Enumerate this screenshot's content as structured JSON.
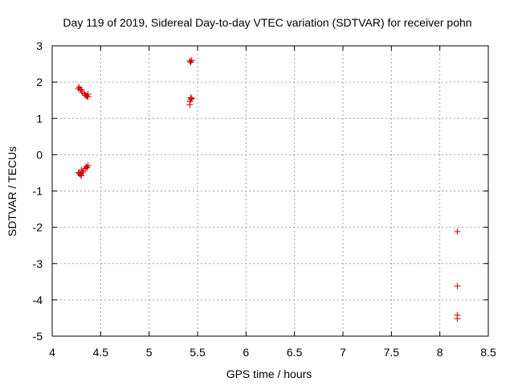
{
  "chart_data": {
    "type": "scatter",
    "title": "Day 119 of 2019, Sidereal Day-to-day VTEC variation (SDTVAR) for receiver pohn",
    "xlabel": "GPS time / hours",
    "ylabel": "SDTVAR / TECUs",
    "xlim": [
      4,
      8.5
    ],
    "ylim": [
      -5,
      3
    ],
    "xticks": [
      4,
      4.5,
      5,
      5.5,
      6,
      6.5,
      7,
      7.5,
      8,
      8.5
    ],
    "yticks": [
      -5,
      -4,
      -3,
      -2,
      -1,
      0,
      1,
      2,
      3
    ],
    "xtick_labels": [
      "4",
      "4.5",
      "5",
      "5.5",
      "6",
      "6.5",
      "7",
      "7.5",
      "8",
      "8.5"
    ],
    "ytick_labels": [
      "-5",
      "-4",
      "-3",
      "-2",
      "-1",
      "0",
      "1",
      "2",
      "3"
    ],
    "grid": true,
    "marker": "+",
    "series": [
      {
        "name": "SDTVAR",
        "color": "#cc0000",
        "points": [
          [
            4.27,
            1.82
          ],
          [
            4.28,
            1.86
          ],
          [
            4.29,
            1.8
          ],
          [
            4.3,
            1.78
          ],
          [
            4.31,
            1.72
          ],
          [
            4.33,
            1.68
          ],
          [
            4.34,
            1.64
          ],
          [
            4.35,
            1.63
          ],
          [
            4.36,
            1.61
          ],
          [
            4.37,
            1.67
          ],
          [
            4.37,
            1.6
          ],
          [
            4.27,
            -0.49
          ],
          [
            4.28,
            -0.52
          ],
          [
            4.29,
            -0.55
          ],
          [
            4.3,
            -0.58
          ],
          [
            4.3,
            -0.42
          ],
          [
            4.31,
            -0.5
          ],
          [
            4.32,
            -0.46
          ],
          [
            4.34,
            -0.38
          ],
          [
            4.35,
            -0.33
          ],
          [
            4.36,
            -0.36
          ],
          [
            4.37,
            -0.3
          ],
          [
            5.42,
            2.58
          ],
          [
            5.43,
            2.55
          ],
          [
            5.44,
            2.6
          ],
          [
            5.42,
            1.38
          ],
          [
            5.42,
            1.47
          ],
          [
            5.43,
            1.52
          ],
          [
            5.43,
            1.57
          ],
          [
            5.44,
            1.55
          ],
          [
            8.18,
            -2.12
          ],
          [
            8.18,
            -3.62
          ],
          [
            8.18,
            -4.42
          ],
          [
            8.18,
            -4.52
          ]
        ]
      }
    ]
  }
}
